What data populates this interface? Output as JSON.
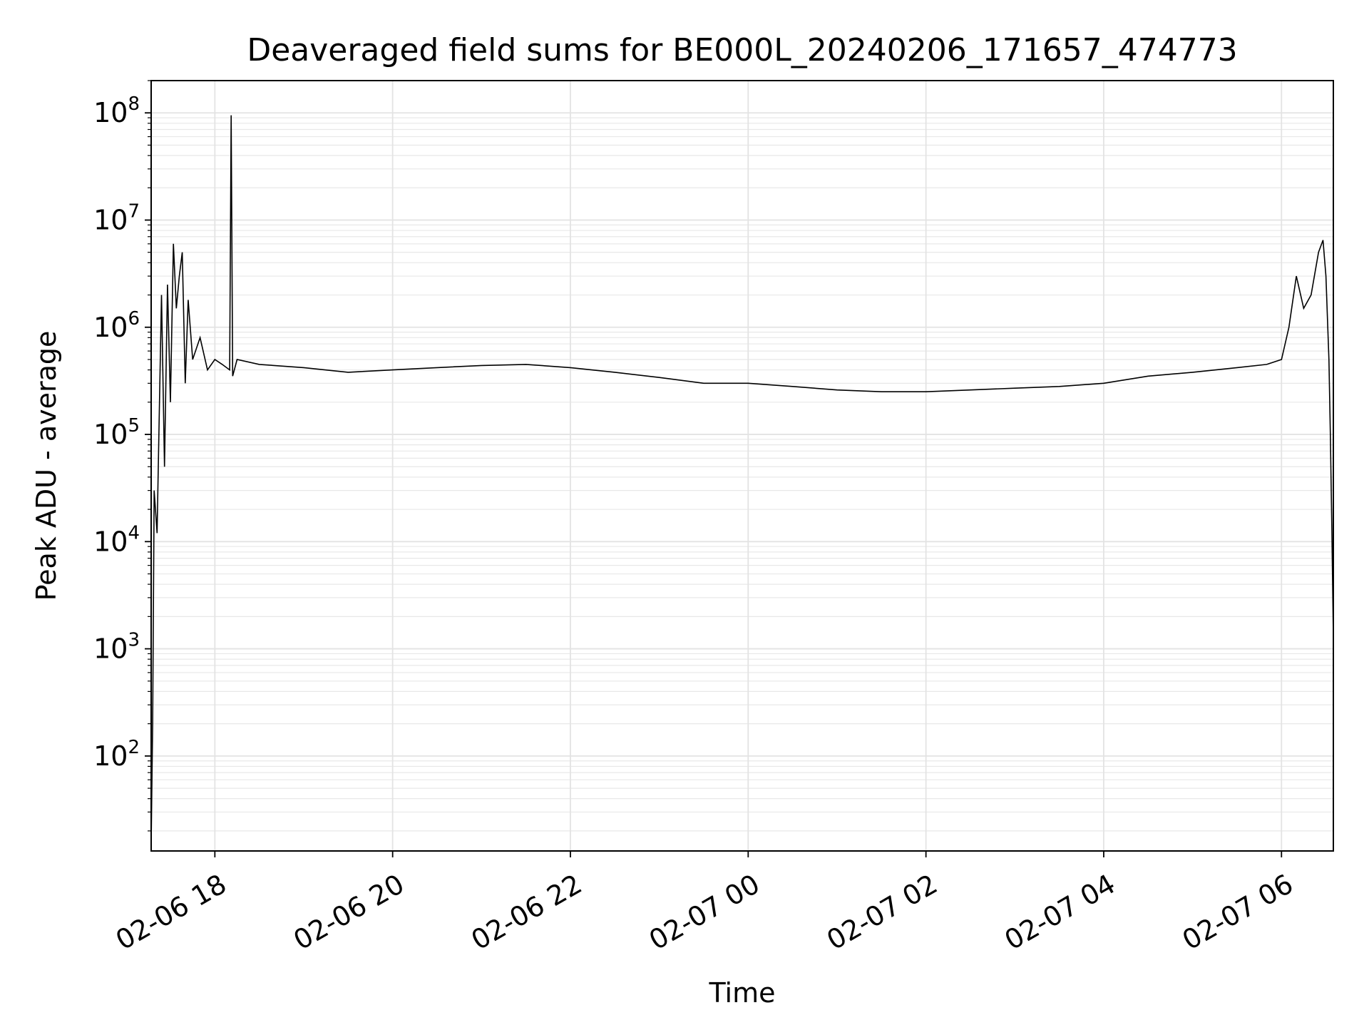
{
  "chart_data": {
    "type": "line",
    "title": "Deaveraged field sums for BE000L_20240206_171657_474773",
    "xlabel": "Time",
    "ylabel": "Peak ADU - average",
    "yscale": "log",
    "grid": true,
    "xlim": [
      "2024-02-06 17:17",
      "2024-02-07 06:35"
    ],
    "ylim": [
      13,
      200000000
    ],
    "x_ticks": [
      {
        "time": "2024-02-06 18:00",
        "label": "02-06 18"
      },
      {
        "time": "2024-02-06 20:00",
        "label": "02-06 20"
      },
      {
        "time": "2024-02-06 22:00",
        "label": "02-06 22"
      },
      {
        "time": "2024-02-07 00:00",
        "label": "02-07 00"
      },
      {
        "time": "2024-02-07 02:00",
        "label": "02-07 02"
      },
      {
        "time": "2024-02-07 04:00",
        "label": "02-07 04"
      },
      {
        "time": "2024-02-07 06:00",
        "label": "02-07 06"
      }
    ],
    "y_ticks": [
      {
        "value": 100,
        "base": "10",
        "exp": "2"
      },
      {
        "value": 1000,
        "base": "10",
        "exp": "3"
      },
      {
        "value": 10000,
        "base": "10",
        "exp": "4"
      },
      {
        "value": 100000,
        "base": "10",
        "exp": "5"
      },
      {
        "value": 1000000,
        "base": "10",
        "exp": "6"
      },
      {
        "value": 10000000,
        "base": "10",
        "exp": "7"
      },
      {
        "value": 100000000,
        "base": "10",
        "exp": "8"
      }
    ],
    "series": [
      {
        "color": "#000000",
        "x": [
          "2024-02-06 17:17",
          "2024-02-06 17:18",
          "2024-02-06 17:19",
          "2024-02-06 17:21",
          "2024-02-06 17:22",
          "2024-02-06 17:24",
          "2024-02-06 17:26",
          "2024-02-06 17:28",
          "2024-02-06 17:30",
          "2024-02-06 17:32",
          "2024-02-06 17:34",
          "2024-02-06 17:36",
          "2024-02-06 17:38",
          "2024-02-06 17:40",
          "2024-02-06 17:42",
          "2024-02-06 17:45",
          "2024-02-06 17:50",
          "2024-02-06 17:55",
          "2024-02-06 18:00",
          "2024-02-06 18:05",
          "2024-02-06 18:10",
          "2024-02-06 18:11",
          "2024-02-06 18:12",
          "2024-02-06 18:15",
          "2024-02-06 18:30",
          "2024-02-06 19:00",
          "2024-02-06 19:30",
          "2024-02-06 20:00",
          "2024-02-06 20:30",
          "2024-02-06 21:00",
          "2024-02-06 21:30",
          "2024-02-06 22:00",
          "2024-02-06 22:30",
          "2024-02-06 23:00",
          "2024-02-06 23:30",
          "2024-02-07 00:00",
          "2024-02-07 00:30",
          "2024-02-07 01:00",
          "2024-02-07 01:30",
          "2024-02-07 02:00",
          "2024-02-07 02:30",
          "2024-02-07 03:00",
          "2024-02-07 03:30",
          "2024-02-07 04:00",
          "2024-02-07 04:30",
          "2024-02-07 05:00",
          "2024-02-07 05:30",
          "2024-02-07 05:50",
          "2024-02-07 06:00",
          "2024-02-07 06:05",
          "2024-02-07 06:10",
          "2024-02-07 06:15",
          "2024-02-07 06:20",
          "2024-02-07 06:25",
          "2024-02-07 06:28",
          "2024-02-07 06:30",
          "2024-02-07 06:32",
          "2024-02-07 06:33",
          "2024-02-07 06:34",
          "2024-02-07 06:35"
        ],
        "values": [
          15,
          200,
          30000,
          12000,
          70000,
          2000000,
          50000,
          2500000,
          200000,
          6000000,
          1500000,
          3000000,
          5000000,
          300000,
          1800000,
          500000,
          800000,
          400000,
          500000,
          450000,
          400000,
          95000000,
          350000,
          500000,
          450000,
          420000,
          380000,
          400000,
          420000,
          440000,
          450000,
          420000,
          380000,
          340000,
          300000,
          300000,
          280000,
          260000,
          250000,
          250000,
          260000,
          270000,
          280000,
          300000,
          350000,
          380000,
          420000,
          450000,
          500000,
          1000000,
          3000000,
          1500000,
          2000000,
          5000000,
          6500000,
          3000000,
          500000,
          100000,
          13000,
          1300
        ]
      }
    ]
  }
}
